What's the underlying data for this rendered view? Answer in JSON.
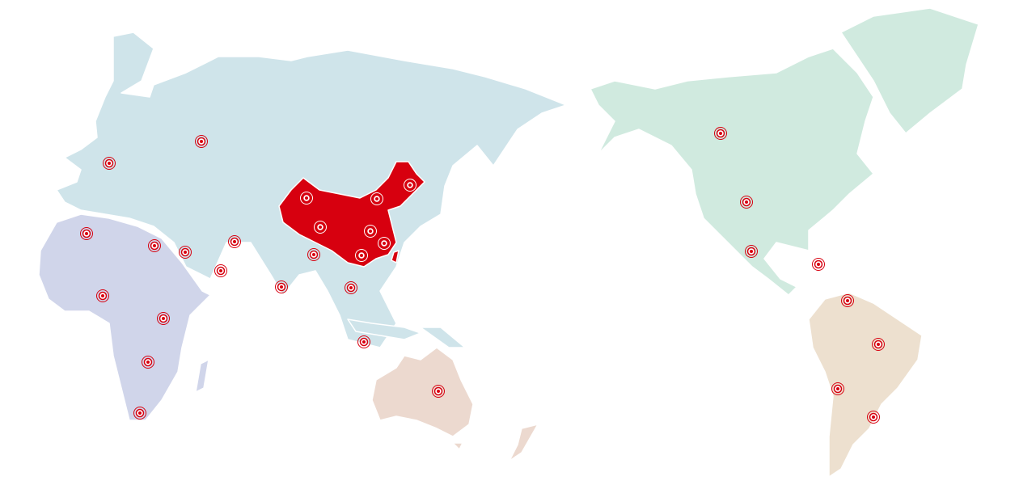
{
  "map": {
    "regions": [
      {
        "name": "eurasia",
        "color": "#cfe4ea"
      },
      {
        "name": "africa",
        "color": "#d0d5ea"
      },
      {
        "name": "oceania",
        "color": "#ecd9cf"
      },
      {
        "name": "north-america",
        "color": "#d0eadf"
      },
      {
        "name": "south-america",
        "color": "#ede0cf"
      },
      {
        "name": "china",
        "color": "#d7000f",
        "highlighted": true
      }
    ],
    "marker_color": "#d7000f",
    "marker_icon": "target-icon"
  }
}
